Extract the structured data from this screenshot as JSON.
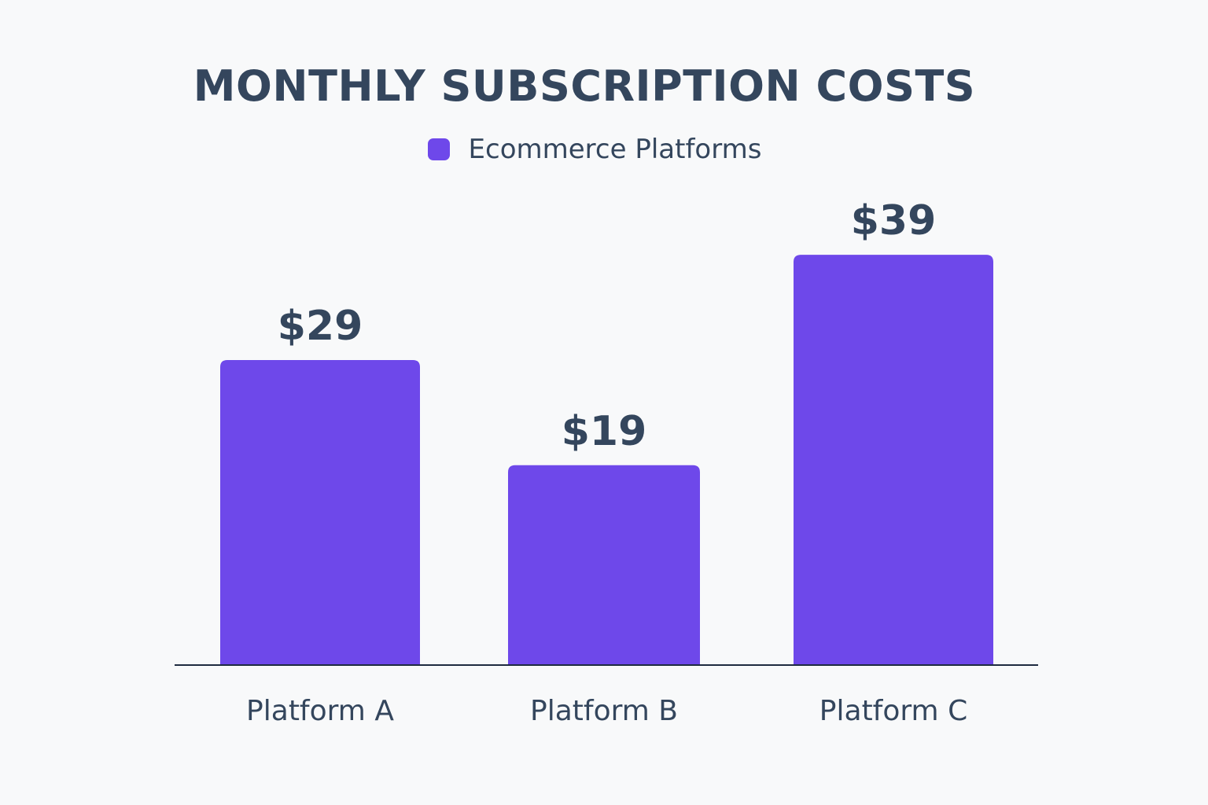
{
  "chart_data": {
    "type": "bar",
    "title": "MONTHLY SUBSCRIPTION COSTS",
    "categories": [
      "Platform A",
      "Platform B",
      "Platform C"
    ],
    "series": [
      {
        "name": "Ecommerce Platforms",
        "values": [
          29,
          19,
          39
        ],
        "labels": [
          "$29",
          "$19",
          "$39"
        ],
        "color": "#6e48ea"
      }
    ],
    "ylim": [
      0,
      50
    ],
    "grid": false,
    "legend_position": "top-center",
    "axis_color": "#1e2b40",
    "text_color": "#34465d"
  }
}
